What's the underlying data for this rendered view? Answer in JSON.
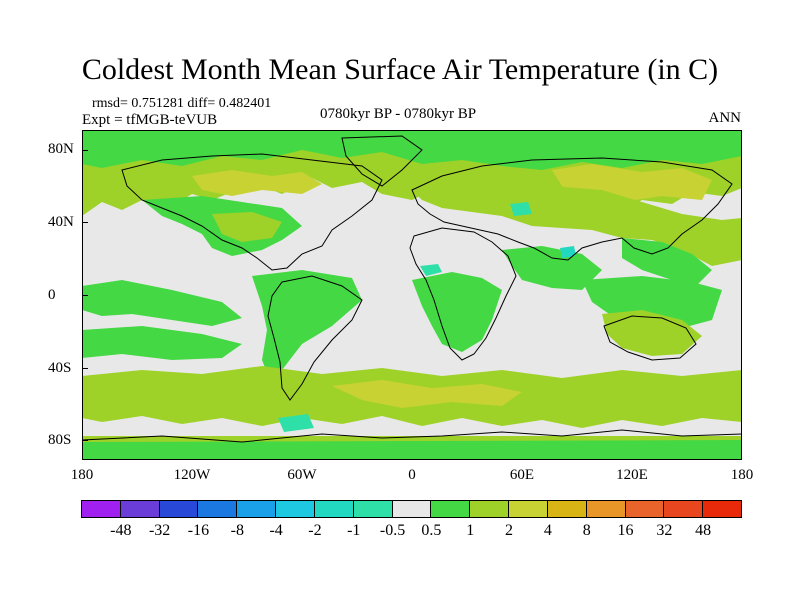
{
  "title": "Coldest Month Mean Surface Air Temperature (in C)",
  "stats_line": "rmsd= 0.751281 diff= 0.482401",
  "experiment": "Expt = tfMGB-teVUB",
  "period": "0780kyr BP - 0780kyr BP",
  "season": "ANN",
  "lat_labels": [
    "80N",
    "40N",
    "0",
    "40S",
    "80S"
  ],
  "lon_labels": [
    "180",
    "120W",
    "60W",
    "0",
    "60E",
    "120E",
    "180"
  ],
  "colorbar": {
    "labels": [
      "-48",
      "-32",
      "-16",
      "-8",
      "-4",
      "-2",
      "-1",
      "-0.5",
      "0.5",
      "1",
      "2",
      "4",
      "8",
      "16",
      "32",
      "48"
    ],
    "colors": [
      "#a020f0",
      "#6a3cd8",
      "#2848d8",
      "#1a78e0",
      "#1aa0e8",
      "#1ec8e0",
      "#22d8c0",
      "#2ee0a8",
      "#e8e8e8",
      "#44d844",
      "#9ed228",
      "#c8d232",
      "#d8b414",
      "#e89628",
      "#e8642a",
      "#e8461e",
      "#e82a0a"
    ]
  },
  "legend_meaning": {
    "neutral": "#e8e8e8",
    "small_warm": "#44d844",
    "moderate_warm": "#9ed228",
    "warm": "#c8d232",
    "strong_warm": "#d8b414",
    "small_cool": "#2ee0a8",
    "cool": "#22d8c0"
  }
}
